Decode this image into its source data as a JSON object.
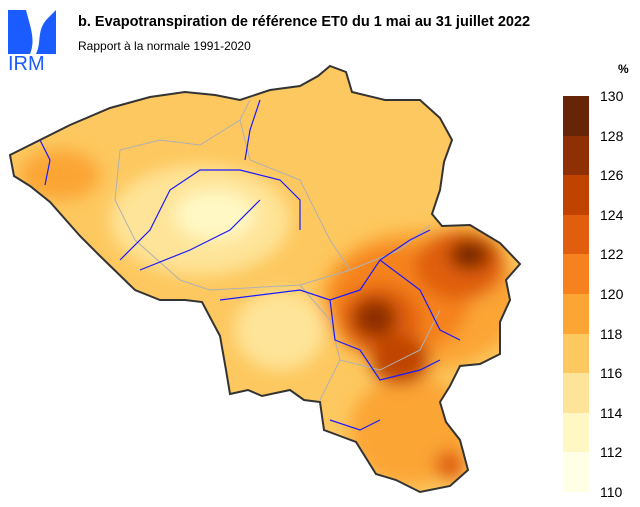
{
  "header": {
    "title": "b. Evapotranspiration de référence ET0 du 1 mai au 31 juillet 2022",
    "subtitle": "Rapport à la normale 1991-2020",
    "logo_text": "IRM"
  },
  "legend": {
    "unit": "%",
    "ticks": [
      "130",
      "128",
      "126",
      "124",
      "122",
      "120",
      "118",
      "116",
      "114",
      "112",
      "110"
    ],
    "colors": [
      "#662506",
      "#8e2f04",
      "#c04400",
      "#e05e0e",
      "#f5821f",
      "#fba535",
      "#fdc85f",
      "#fee498",
      "#fff8c4",
      "#ffffe6"
    ]
  },
  "map": {
    "river_color": "#1a1aff",
    "boundary_color": "#b0b0b0",
    "outline_color": "#333333"
  }
}
